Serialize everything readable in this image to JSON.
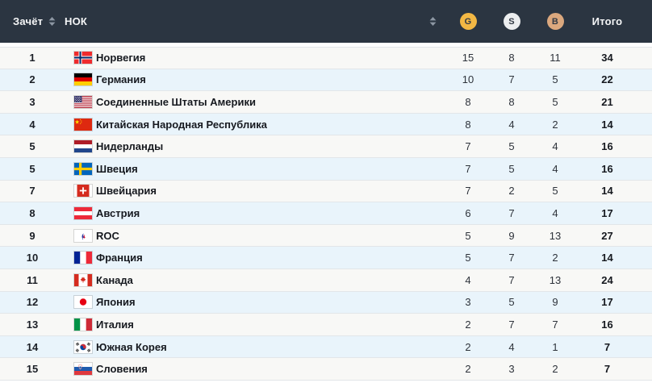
{
  "table": {
    "columns": {
      "rank_label": "Зачёт",
      "noc_label": "НОК",
      "gold_label": "G",
      "silver_label": "S",
      "bronze_label": "B",
      "total_label": "Итого"
    },
    "colors": {
      "header_bg": "#2b3541",
      "gold": "#f3b844",
      "silver": "#eceeef",
      "bronze": "#dba87e",
      "row_alt": "#e9f4fb"
    },
    "rows": [
      {
        "rank": "1",
        "flag": "norway",
        "country": "Норвегия",
        "gold": "15",
        "silver": "8",
        "bronze": "11",
        "total": "34"
      },
      {
        "rank": "2",
        "flag": "germany",
        "country": "Германия",
        "gold": "10",
        "silver": "7",
        "bronze": "5",
        "total": "22"
      },
      {
        "rank": "3",
        "flag": "usa",
        "country": "Соединенные Штаты Америки",
        "gold": "8",
        "silver": "8",
        "bronze": "5",
        "total": "21"
      },
      {
        "rank": "4",
        "flag": "china",
        "country": "Китайская Народная Республика",
        "gold": "8",
        "silver": "4",
        "bronze": "2",
        "total": "14"
      },
      {
        "rank": "5",
        "flag": "netherlands",
        "country": "Нидерланды",
        "gold": "7",
        "silver": "5",
        "bronze": "4",
        "total": "16"
      },
      {
        "rank": "5",
        "flag": "sweden",
        "country": "Швеция",
        "gold": "7",
        "silver": "5",
        "bronze": "4",
        "total": "16"
      },
      {
        "rank": "7",
        "flag": "switzerland",
        "country": "Швейцария",
        "gold": "7",
        "silver": "2",
        "bronze": "5",
        "total": "14"
      },
      {
        "rank": "8",
        "flag": "austria",
        "country": "Австрия",
        "gold": "6",
        "silver": "7",
        "bronze": "4",
        "total": "17"
      },
      {
        "rank": "9",
        "flag": "roc",
        "country": "ROC",
        "gold": "5",
        "silver": "9",
        "bronze": "13",
        "total": "27"
      },
      {
        "rank": "10",
        "flag": "france",
        "country": "Франция",
        "gold": "5",
        "silver": "7",
        "bronze": "2",
        "total": "14"
      },
      {
        "rank": "11",
        "flag": "canada",
        "country": "Канада",
        "gold": "4",
        "silver": "7",
        "bronze": "13",
        "total": "24"
      },
      {
        "rank": "12",
        "flag": "japan",
        "country": "Япония",
        "gold": "3",
        "silver": "5",
        "bronze": "9",
        "total": "17"
      },
      {
        "rank": "13",
        "flag": "italy",
        "country": "Италия",
        "gold": "2",
        "silver": "7",
        "bronze": "7",
        "total": "16"
      },
      {
        "rank": "14",
        "flag": "south-korea",
        "country": "Южная Корея",
        "gold": "2",
        "silver": "4",
        "bronze": "1",
        "total": "7"
      },
      {
        "rank": "15",
        "flag": "slovenia",
        "country": "Словения",
        "gold": "2",
        "silver": "3",
        "bronze": "2",
        "total": "7"
      }
    ]
  }
}
